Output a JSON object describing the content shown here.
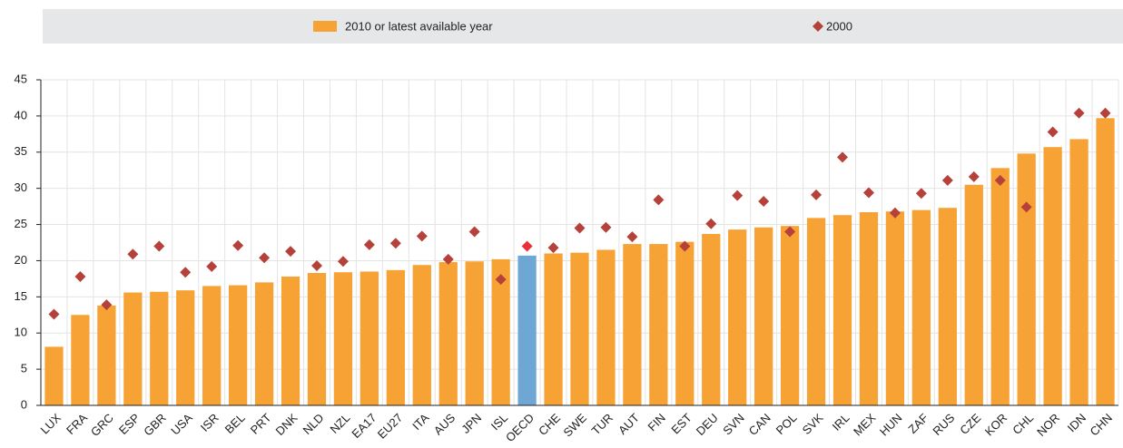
{
  "chart_data": {
    "type": "bar_marker",
    "categories": [
      "LUX",
      "FRA",
      "GRC",
      "ESP",
      "GBR",
      "USA",
      "ISR",
      "BEL",
      "PRT",
      "DNK",
      "NLD",
      "NZL",
      "EA17",
      "EU27",
      "ITA",
      "AUS",
      "JPN",
      "ISL",
      "OECD",
      "CHE",
      "SWE",
      "TUR",
      "AUT",
      "FIN",
      "EST",
      "DEU",
      "SVN",
      "CAN",
      "POL",
      "SVK",
      "IRL",
      "MEX",
      "HUN",
      "ZAF",
      "RUS",
      "CZE",
      "KOR",
      "CHL",
      "NOR",
      "IDN",
      "CHN"
    ],
    "series": [
      {
        "name": "2010 or latest available year",
        "color": "#f7a234",
        "kind": "bar",
        "values": [
          8.1,
          12.5,
          13.8,
          15.6,
          15.7,
          15.9,
          16.5,
          16.6,
          17.0,
          17.8,
          18.3,
          18.4,
          18.5,
          18.7,
          19.4,
          19.8,
          19.9,
          20.2,
          20.7,
          21.0,
          21.1,
          21.5,
          22.3,
          22.3,
          22.6,
          23.7,
          24.3,
          24.6,
          24.8,
          25.9,
          26.3,
          26.7,
          26.8,
          27.0,
          27.3,
          30.5,
          32.8,
          34.8,
          35.7,
          36.8,
          39.7
        ]
      },
      {
        "name": "2000",
        "color": "#b5413a",
        "kind": "marker",
        "values": [
          12.6,
          17.8,
          13.9,
          20.9,
          22.0,
          18.4,
          19.2,
          22.1,
          20.4,
          21.3,
          19.3,
          19.9,
          22.2,
          22.4,
          23.4,
          20.2,
          24.0,
          17.4,
          22.0,
          21.8,
          24.5,
          24.6,
          23.3,
          28.4,
          22.0,
          25.1,
          29.0,
          28.2,
          24.0,
          29.1,
          34.3,
          29.4,
          26.6,
          29.3,
          31.1,
          31.6,
          31.1,
          27.4,
          37.8,
          40.4,
          40.4
        ]
      }
    ],
    "highlight": {
      "category": "OECD",
      "bar_color": "#6ea6d4",
      "marker_color": "#e8303a"
    },
    "ylim": [
      0,
      45
    ],
    "yticks": [
      0,
      5,
      10,
      15,
      20,
      25,
      30,
      35,
      40,
      45
    ],
    "grid": true
  }
}
